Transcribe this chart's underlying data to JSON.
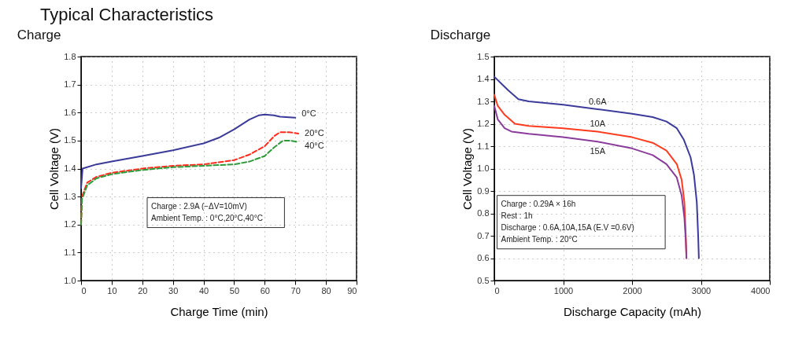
{
  "chart_data": [
    {
      "type": "line",
      "title": "Typical Characteristics",
      "subtitle": "Charge",
      "xlabel": "Charge Time (min)",
      "ylabel": "Cell Voltage (V)",
      "xlim": [
        0,
        90
      ],
      "xticks": [
        0,
        10,
        20,
        30,
        40,
        50,
        60,
        70,
        80,
        90
      ],
      "ylim": [
        1.0,
        1.8
      ],
      "yticks": [
        {
          "value": 1.0,
          "label": "1.0"
        },
        1.1,
        1.2,
        1.3,
        1.4,
        1.5,
        1.6,
        1.7,
        1.8
      ],
      "grid": true,
      "annotations": [
        "Charge : 2.9A (−ΔV=10mV)",
        "Ambient Temp. : 0°C,20°C,40°C"
      ],
      "series": [
        {
          "name": "0°C",
          "color": "#3a3a9a",
          "line_style": "solid",
          "x": [
            0,
            0.5,
            5,
            10,
            20,
            30,
            40,
            45,
            50,
            55,
            58,
            60,
            63,
            65,
            70
          ],
          "values": [
            1.33,
            1.4,
            1.415,
            1.425,
            1.445,
            1.465,
            1.49,
            1.51,
            1.54,
            1.575,
            1.59,
            1.593,
            1.59,
            1.585,
            1.582
          ]
        },
        {
          "name": "20°C",
          "color": "#ff2a1a",
          "line_style": "dashed",
          "x": [
            0,
            0.3,
            2,
            5,
            10,
            20,
            30,
            40,
            50,
            55,
            60,
            63,
            65,
            68,
            71
          ],
          "values": [
            1.2,
            1.3,
            1.35,
            1.37,
            1.385,
            1.4,
            1.41,
            1.415,
            1.43,
            1.45,
            1.48,
            1.515,
            1.53,
            1.53,
            1.525
          ]
        },
        {
          "name": "40°C",
          "color": "#2e9a3a",
          "line_style": "dashed",
          "x": [
            0,
            0.3,
            2,
            5,
            10,
            20,
            30,
            40,
            50,
            55,
            60,
            63,
            66,
            68,
            71
          ],
          "values": [
            1.2,
            1.29,
            1.34,
            1.365,
            1.38,
            1.395,
            1.405,
            1.41,
            1.415,
            1.425,
            1.445,
            1.475,
            1.5,
            1.5,
            1.495
          ]
        }
      ]
    },
    {
      "type": "line",
      "subtitle": "Discharge",
      "xlabel": "Discharge Capacity (mAh)",
      "ylabel": "Cell Voltage (V)",
      "xlim": [
        0,
        4000
      ],
      "xticks": [
        0,
        1000,
        2000,
        3000,
        4000
      ],
      "ylim": [
        0.5,
        1.5
      ],
      "yticks": [
        0.5,
        0.6,
        0.7,
        0.8,
        0.9,
        {
          "value": 1.0,
          "label": "1.0"
        },
        1.1,
        1.2,
        1.3,
        1.4,
        1.5
      ],
      "grid": true,
      "annotations": [
        "Charge : 0.29A × 16h",
        "Rest : 1h",
        "Discharge : 0.6A,10A,15A (E.V =0.6V)",
        "Ambient Temp. : 20°C"
      ],
      "series": [
        {
          "name": "0.6A",
          "color": "#3b3b9c",
          "line_style": "solid",
          "x": [
            0,
            100,
            200,
            350,
            500,
            1000,
            1500,
            2000,
            2300,
            2500,
            2650,
            2750,
            2850,
            2900,
            2940,
            2960,
            2970
          ],
          "values": [
            1.41,
            1.38,
            1.35,
            1.31,
            1.3,
            1.285,
            1.265,
            1.245,
            1.23,
            1.21,
            1.18,
            1.13,
            1.05,
            0.97,
            0.85,
            0.7,
            0.6
          ]
        },
        {
          "name": "10A",
          "color": "#ff3b1f",
          "line_style": "solid",
          "x": [
            0,
            50,
            150,
            300,
            500,
            1000,
            1500,
            2000,
            2300,
            2500,
            2650,
            2720,
            2760,
            2780,
            2790
          ],
          "values": [
            1.33,
            1.28,
            1.24,
            1.2,
            1.19,
            1.18,
            1.165,
            1.14,
            1.115,
            1.08,
            1.02,
            0.95,
            0.85,
            0.7,
            0.6
          ]
        },
        {
          "name": "15A",
          "color": "#8a3c9c",
          "line_style": "solid",
          "x": [
            0,
            50,
            150,
            250,
            500,
            1000,
            1500,
            2000,
            2300,
            2500,
            2650,
            2720,
            2760,
            2780,
            2790
          ],
          "values": [
            1.28,
            1.22,
            1.18,
            1.165,
            1.155,
            1.14,
            1.12,
            1.09,
            1.06,
            1.02,
            0.96,
            0.88,
            0.78,
            0.68,
            0.6
          ]
        }
      ]
    }
  ]
}
